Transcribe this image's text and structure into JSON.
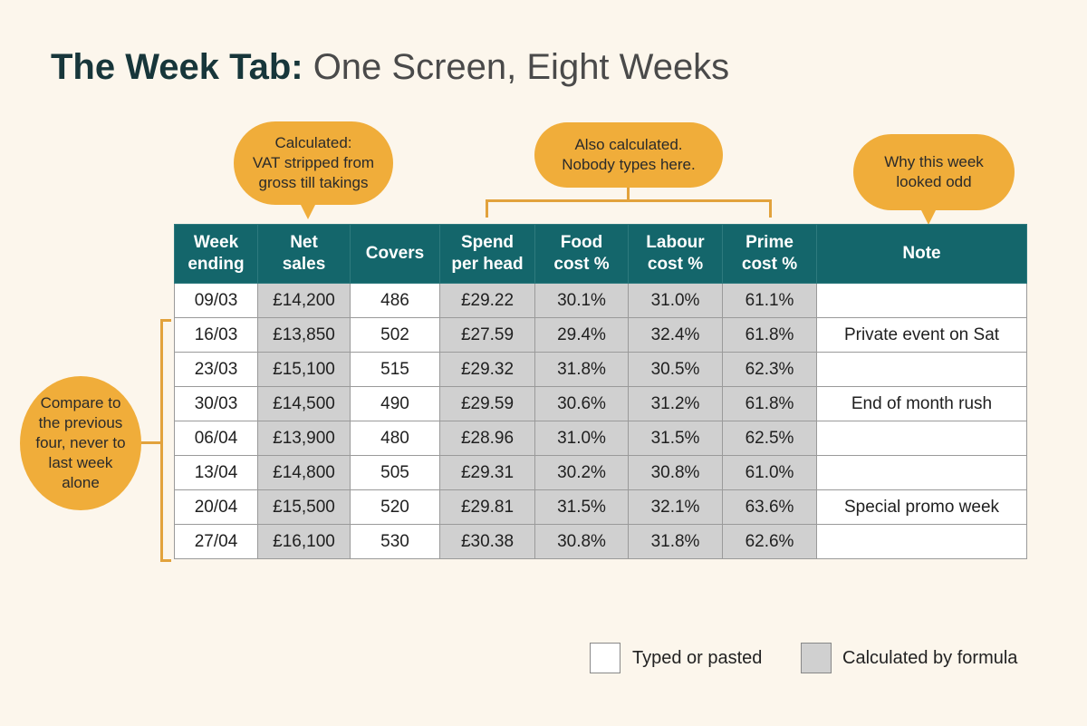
{
  "title": {
    "bold": "The Week Tab:",
    "rest": " One Screen, Eight Weeks"
  },
  "callouts": {
    "net_sales": "Calculated:\nVAT stripped from\ngross till takings",
    "calculated": "Also calculated.\nNobody types here.",
    "note": "Why this week\nlooked odd",
    "compare": "Compare to\nthe previous\nfour, never to\nlast week\nalone"
  },
  "table": {
    "headers": [
      "Week\nending",
      "Net\nsales",
      "Covers",
      "Spend\nper head",
      "Food\ncost %",
      "Labour\ncost %",
      "Prime\ncost %",
      "Note"
    ],
    "calculated_columns": [
      1,
      3,
      4,
      5,
      6
    ],
    "rows": [
      [
        "09/03",
        "£14,200",
        "486",
        "£29.22",
        "30.1%",
        "31.0%",
        "61.1%",
        ""
      ],
      [
        "16/03",
        "£13,850",
        "502",
        "£27.59",
        "29.4%",
        "32.4%",
        "61.8%",
        "Private event on Sat"
      ],
      [
        "23/03",
        "£15,100",
        "515",
        "£29.32",
        "31.8%",
        "30.5%",
        "62.3%",
        ""
      ],
      [
        "30/03",
        "£14,500",
        "490",
        "£29.59",
        "30.6%",
        "31.2%",
        "61.8%",
        "End of month rush"
      ],
      [
        "06/04",
        "£13,900",
        "480",
        "£28.96",
        "31.0%",
        "31.5%",
        "62.5%",
        ""
      ],
      [
        "13/04",
        "£14,800",
        "505",
        "£29.31",
        "30.2%",
        "30.8%",
        "61.0%",
        ""
      ],
      [
        "20/04",
        "£15,500",
        "520",
        "£29.81",
        "31.5%",
        "32.1%",
        "63.6%",
        "Special promo week"
      ],
      [
        "27/04",
        "£16,100",
        "530",
        "£30.38",
        "30.8%",
        "31.8%",
        "62.6%",
        ""
      ]
    ]
  },
  "legend": {
    "typed": "Typed or pasted",
    "calculated": "Calculated by formula"
  },
  "colors": {
    "header": "#14666b",
    "accent": "#f0ad3a",
    "calculated_cell": "#d0d0d0",
    "background": "#fcf6ec"
  }
}
